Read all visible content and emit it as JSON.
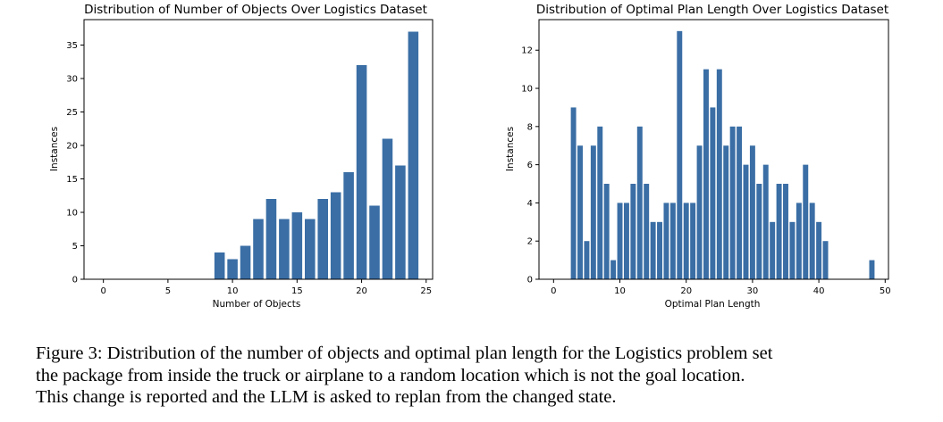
{
  "colors": {
    "bar": "#3a6ea5",
    "axis": "#000000",
    "background": "#ffffff"
  },
  "chart_data": [
    {
      "type": "bar",
      "title": "Distribution of Number of Objects Over Logistics Dataset",
      "xlabel": "Number of Objects",
      "ylabel": "Instances",
      "xlim": [
        -1.5,
        25.5
      ],
      "ylim": [
        0,
        38.8
      ],
      "xticks": [
        0,
        5,
        10,
        15,
        20,
        25
      ],
      "yticks": [
        0,
        5,
        10,
        15,
        20,
        25,
        30,
        35
      ],
      "grid": false,
      "x": [
        9,
        10,
        11,
        12,
        13,
        14,
        15,
        16,
        17,
        18,
        19,
        20,
        21,
        22,
        23,
        24
      ],
      "values": [
        4,
        3,
        5,
        9,
        12,
        9,
        10,
        9,
        12,
        13,
        16,
        32,
        11,
        21,
        17,
        37
      ]
    },
    {
      "type": "bar",
      "title": "Distribution of Optimal Plan Length Over Logistics Dataset",
      "xlabel": "Optimal Plan Length",
      "ylabel": "Instances",
      "xlim": [
        -2.2,
        50.5
      ],
      "ylim": [
        0,
        13.6
      ],
      "xticks": [
        0,
        10,
        20,
        30,
        40,
        50
      ],
      "yticks": [
        0,
        2,
        4,
        6,
        8,
        10,
        12
      ],
      "grid": false,
      "x": [
        3,
        4,
        5,
        6,
        7,
        8,
        9,
        10,
        11,
        12,
        13,
        14,
        15,
        16,
        17,
        18,
        19,
        20,
        21,
        22,
        23,
        24,
        25,
        26,
        27,
        28,
        29,
        30,
        31,
        32,
        33,
        34,
        35,
        36,
        37,
        38,
        39,
        40,
        41,
        48
      ],
      "values": [
        9,
        7,
        2,
        7,
        8,
        5,
        1,
        4,
        4,
        5,
        8,
        5,
        3,
        3,
        4,
        4,
        13,
        4,
        4,
        7,
        11,
        9,
        11,
        7,
        8,
        8,
        6,
        7,
        5,
        6,
        3,
        5,
        5,
        3,
        4,
        6,
        4,
        3,
        2,
        1
      ]
    }
  ],
  "caption": {
    "line1": "Figure 3: Distribution of the number of objects and optimal plan length for the Logistics problem set",
    "line2": "the package from inside the truck or airplane to a random location which is not the goal location.",
    "line3": "This change is reported and the LLM is asked to replan from the changed state."
  }
}
